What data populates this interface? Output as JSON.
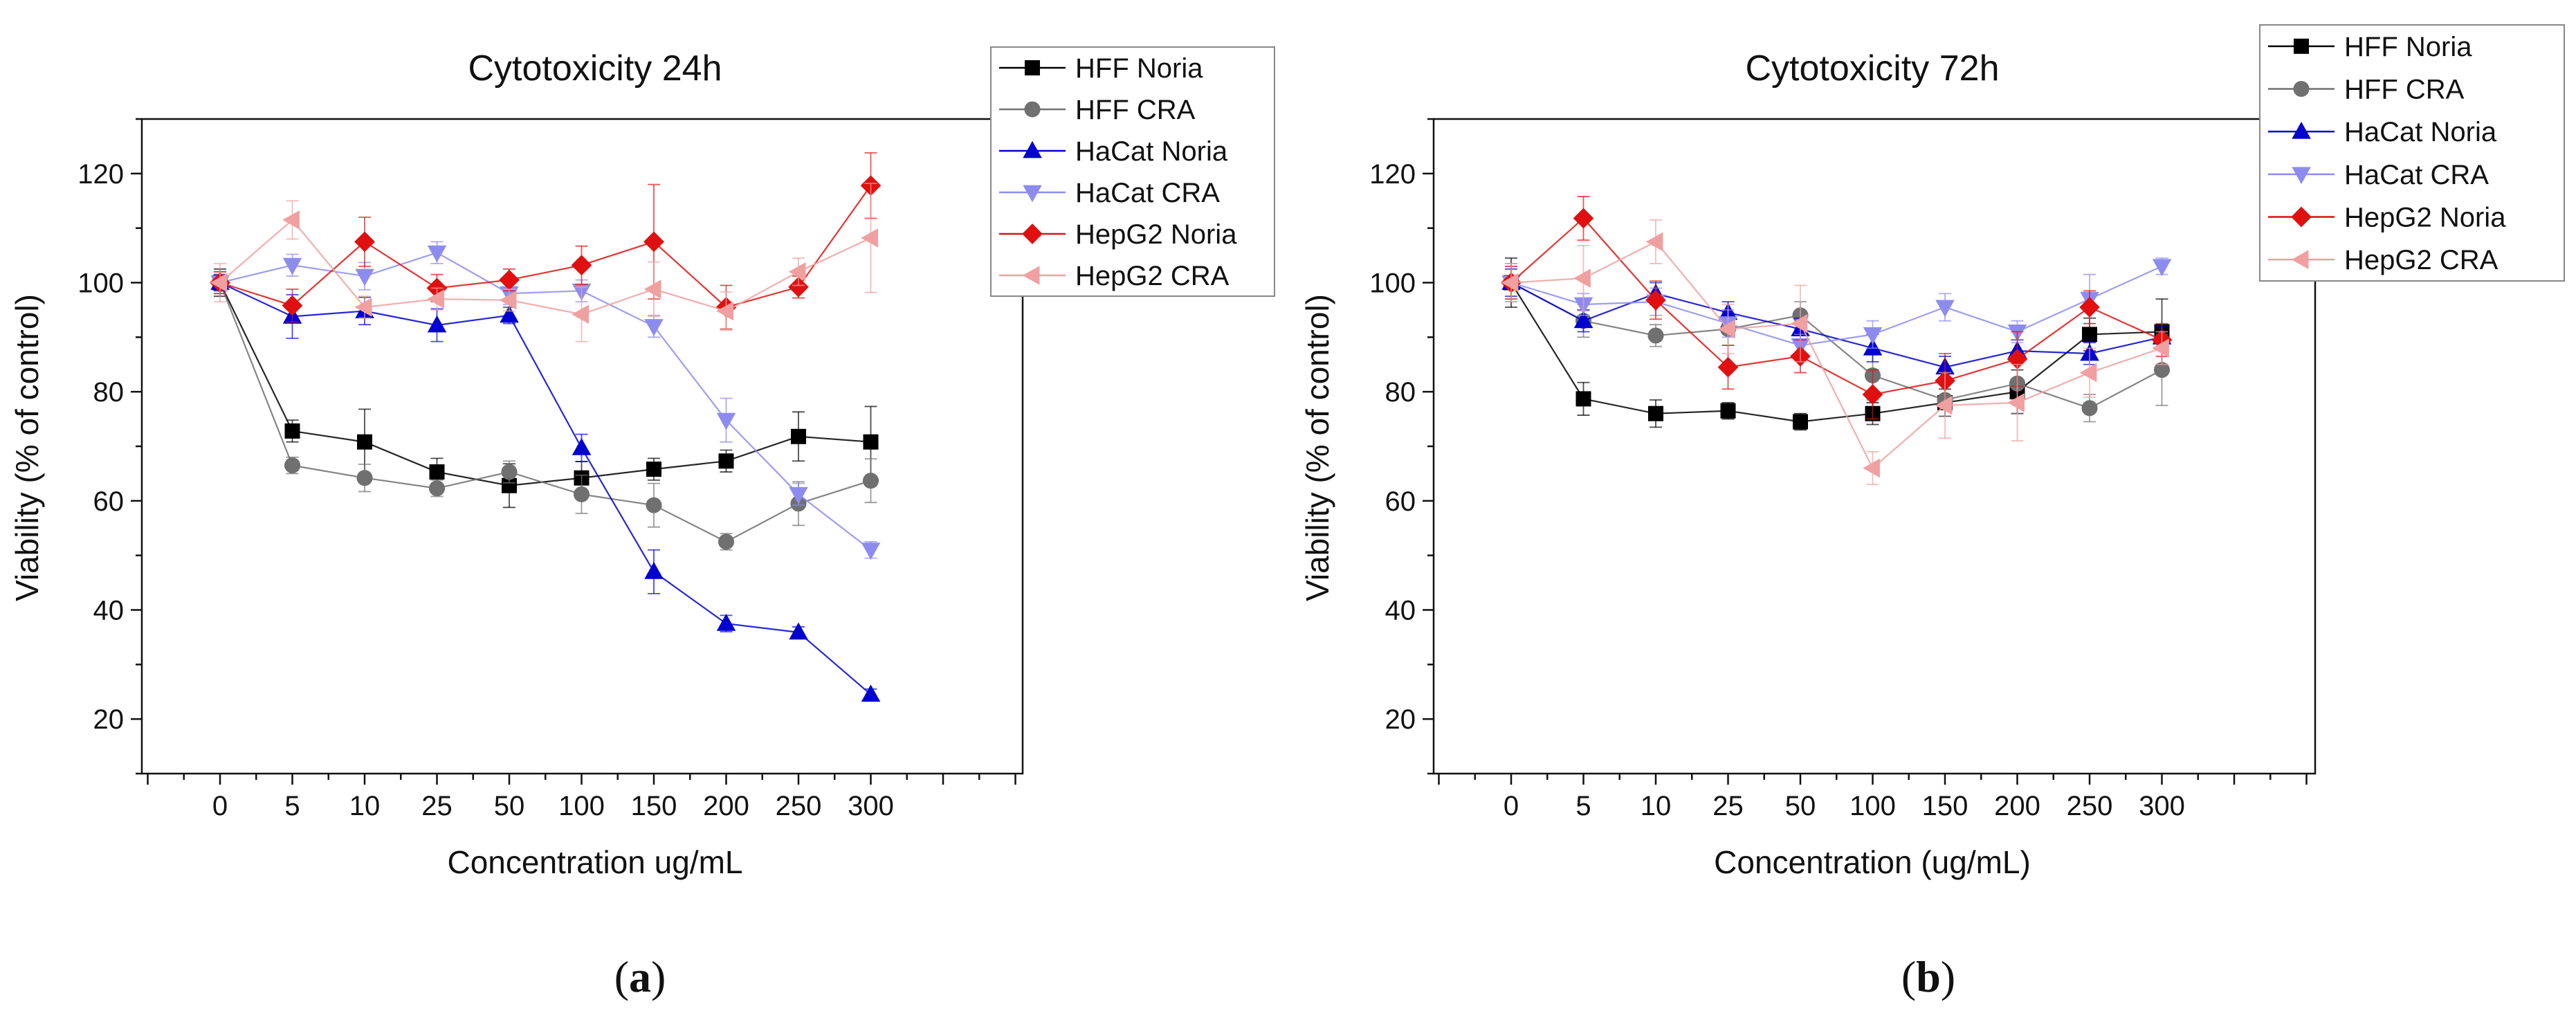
{
  "figure": {
    "panels": [
      {
        "prefix": "(",
        "letter": "a",
        "suffix": ")"
      },
      {
        "prefix": "(",
        "letter": "b",
        "suffix": ")"
      }
    ]
  },
  "chart_data": [
    {
      "type": "line",
      "title": "Cytotoxicity 24h",
      "xlabel": "Concentration ug/mL",
      "ylabel": "Viability (% of control)",
      "categories": [
        "0",
        "5",
        "10",
        "25",
        "50",
        "100",
        "150",
        "200",
        "250",
        "300"
      ],
      "ylim": [
        10,
        130
      ],
      "yticks": [
        20,
        40,
        60,
        80,
        100,
        120
      ],
      "grid": false,
      "legend_position": "top-right",
      "series": [
        {
          "name": "HFF Noria",
          "color": "#000000",
          "marker": "square",
          "values": [
            100,
            72.8,
            70.8,
            65.3,
            62.8,
            64.2,
            65.8,
            67.3,
            71.8,
            70.8
          ],
          "errors": [
            2.5,
            2.0,
            6.0,
            2.5,
            4.0,
            3.0,
            2.0,
            2.0,
            4.5,
            6.5
          ]
        },
        {
          "name": "HFF CRA",
          "color": "#707070",
          "marker": "circle",
          "values": [
            100,
            66.5,
            64.2,
            62.3,
            65.3,
            61.2,
            59.2,
            52.5,
            59.5,
            63.7
          ],
          "errors": [
            2.0,
            1.5,
            2.5,
            1.5,
            2.0,
            3.5,
            4.0,
            1.5,
            4.0,
            4.0
          ]
        },
        {
          "name": "HaCat Noria",
          "color": "#0000d0",
          "marker": "triangle-up",
          "values": [
            100,
            93.8,
            94.8,
            92.2,
            94.0,
            69.7,
            47.0,
            37.5,
            35.9,
            24.5
          ],
          "errors": [
            1.5,
            4.0,
            2.5,
            3.0,
            1.5,
            2.5,
            4.0,
            1.5,
            1.0,
            1.0
          ]
        },
        {
          "name": "HaCat CRA",
          "color": "#8c8cf0",
          "marker": "triangle-down",
          "values": [
            100,
            103.2,
            101.2,
            105.5,
            98.0,
            98.5,
            92.0,
            74.8,
            61.2,
            51.0
          ],
          "errors": [
            2.0,
            2.0,
            2.5,
            2.0,
            2.0,
            2.0,
            2.0,
            4.0,
            2.0,
            1.5
          ]
        },
        {
          "name": "HepG2 Noria",
          "color": "#e01010",
          "marker": "diamond",
          "values": [
            100,
            95.8,
            107.5,
            99.0,
            100.5,
            103.2,
            107.5,
            95.5,
            99.2,
            117.8
          ],
          "errors": [
            2.0,
            3.0,
            4.5,
            2.5,
            2.0,
            3.5,
            10.5,
            4.0,
            2.0,
            6.0
          ]
        },
        {
          "name": "HepG2 CRA",
          "color": "#f0a0a0",
          "marker": "triangle-left",
          "values": [
            100,
            111.5,
            95.5,
            97.0,
            96.8,
            94.2,
            98.8,
            94.8,
            102.0,
            108.2
          ],
          "errors": [
            3.5,
            3.5,
            2.0,
            2.0,
            2.0,
            5.0,
            5.0,
            3.5,
            2.5,
            10.0
          ]
        }
      ]
    },
    {
      "type": "line",
      "title": "Cytotoxicity 72h",
      "xlabel": "Concentration (ug/mL)",
      "ylabel": "Viability (% of control)",
      "categories": [
        "0",
        "5",
        "10",
        "25",
        "50",
        "100",
        "150",
        "200",
        "250",
        "300"
      ],
      "ylim": [
        10,
        130
      ],
      "yticks": [
        20,
        40,
        60,
        80,
        100,
        120
      ],
      "grid": false,
      "legend_position": "top-right",
      "series": [
        {
          "name": "HFF Noria",
          "color": "#000000",
          "marker": "square",
          "values": [
            100,
            78.7,
            76.0,
            76.5,
            74.5,
            76.0,
            78.0,
            80.0,
            90.5,
            91.0
          ],
          "errors": [
            4.5,
            3.0,
            2.5,
            1.5,
            1.5,
            2.0,
            2.5,
            4.0,
            3.0,
            6.0
          ]
        },
        {
          "name": "HFF CRA",
          "color": "#707070",
          "marker": "circle",
          "values": [
            100,
            93.0,
            90.3,
            91.5,
            94.0,
            83.0,
            78.5,
            81.5,
            77.0,
            84.0
          ],
          "errors": [
            3.5,
            3.0,
            2.0,
            3.0,
            2.5,
            4.5,
            3.0,
            5.5,
            2.5,
            6.5
          ]
        },
        {
          "name": "HaCat Noria",
          "color": "#0000d0",
          "marker": "triangle-up",
          "values": [
            100,
            93.0,
            98.0,
            94.5,
            91.5,
            88.0,
            84.5,
            87.5,
            87.0,
            90.0
          ],
          "errors": [
            2.5,
            2.0,
            2.0,
            2.0,
            2.0,
            2.5,
            2.0,
            2.0,
            2.0,
            2.0
          ]
        },
        {
          "name": "HaCat CRA",
          "color": "#8c8cf0",
          "marker": "triangle-down",
          "values": [
            100,
            96.0,
            96.5,
            92.5,
            88.5,
            90.5,
            95.5,
            91.0,
            97.0,
            103.0
          ],
          "errors": [
            3.0,
            2.0,
            2.5,
            2.5,
            2.0,
            2.5,
            2.5,
            2.0,
            4.5,
            1.5
          ]
        },
        {
          "name": "HepG2 Noria",
          "color": "#e01010",
          "marker": "diamond",
          "values": [
            100,
            111.8,
            96.8,
            84.5,
            86.5,
            79.5,
            82.0,
            86.0,
            95.5,
            89.5
          ],
          "errors": [
            3.0,
            4.0,
            3.5,
            4.0,
            3.0,
            4.5,
            5.0,
            5.0,
            3.0,
            3.0
          ]
        },
        {
          "name": "HepG2 CRA",
          "color": "#f0a0a0",
          "marker": "triangle-left",
          "values": [
            100,
            100.8,
            107.5,
            91.5,
            92.5,
            66.0,
            77.5,
            78.0,
            83.5,
            88.0
          ],
          "errors": [
            3.5,
            6.0,
            4.0,
            4.5,
            7.0,
            3.0,
            6.0,
            7.0,
            4.5,
            3.0
          ]
        }
      ]
    }
  ]
}
